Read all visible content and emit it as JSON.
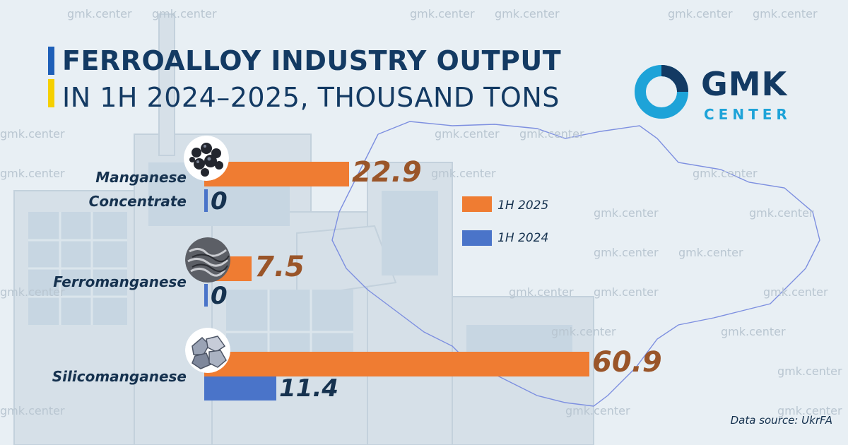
{
  "header": {
    "title_line1": "FERROALLOY INDUSTRY OUTPUT",
    "title_line2": "IN 1H 2024–2025, THOUSAND TONS"
  },
  "brand": {
    "name": "GMK",
    "sub": "CENTER",
    "watermark": "gmk.center"
  },
  "colors": {
    "orange": "#ef7c32",
    "blue": "#4a74c9",
    "navy": "#133a63",
    "cyan": "#1ea3d8"
  },
  "legend": [
    {
      "label": "1H 2025",
      "color": "#ef7c32"
    },
    {
      "label": "1H 2024",
      "color": "#4a74c9"
    }
  ],
  "source": "Data source: UkrFA",
  "chart_data": {
    "type": "bar",
    "orientation": "horizontal",
    "title": "FERROALLOY INDUSTRY OUTPUT IN 1H 2024–2025, THOUSAND TONS",
    "categories": [
      [
        "Manganese",
        "Concentrate"
      ],
      [
        "Ferromanganese"
      ],
      [
        "Silicomanganese"
      ]
    ],
    "series": [
      {
        "name": "1H 2025",
        "values": [
          22.9,
          7.5,
          60.9
        ],
        "labels": [
          "22.9",
          "7.5",
          "60.9"
        ]
      },
      {
        "name": "1H 2024",
        "values": [
          0,
          0,
          11.4
        ],
        "labels": [
          "0",
          "0",
          "11.4"
        ]
      }
    ],
    "grid": false,
    "legend_position": "right"
  }
}
